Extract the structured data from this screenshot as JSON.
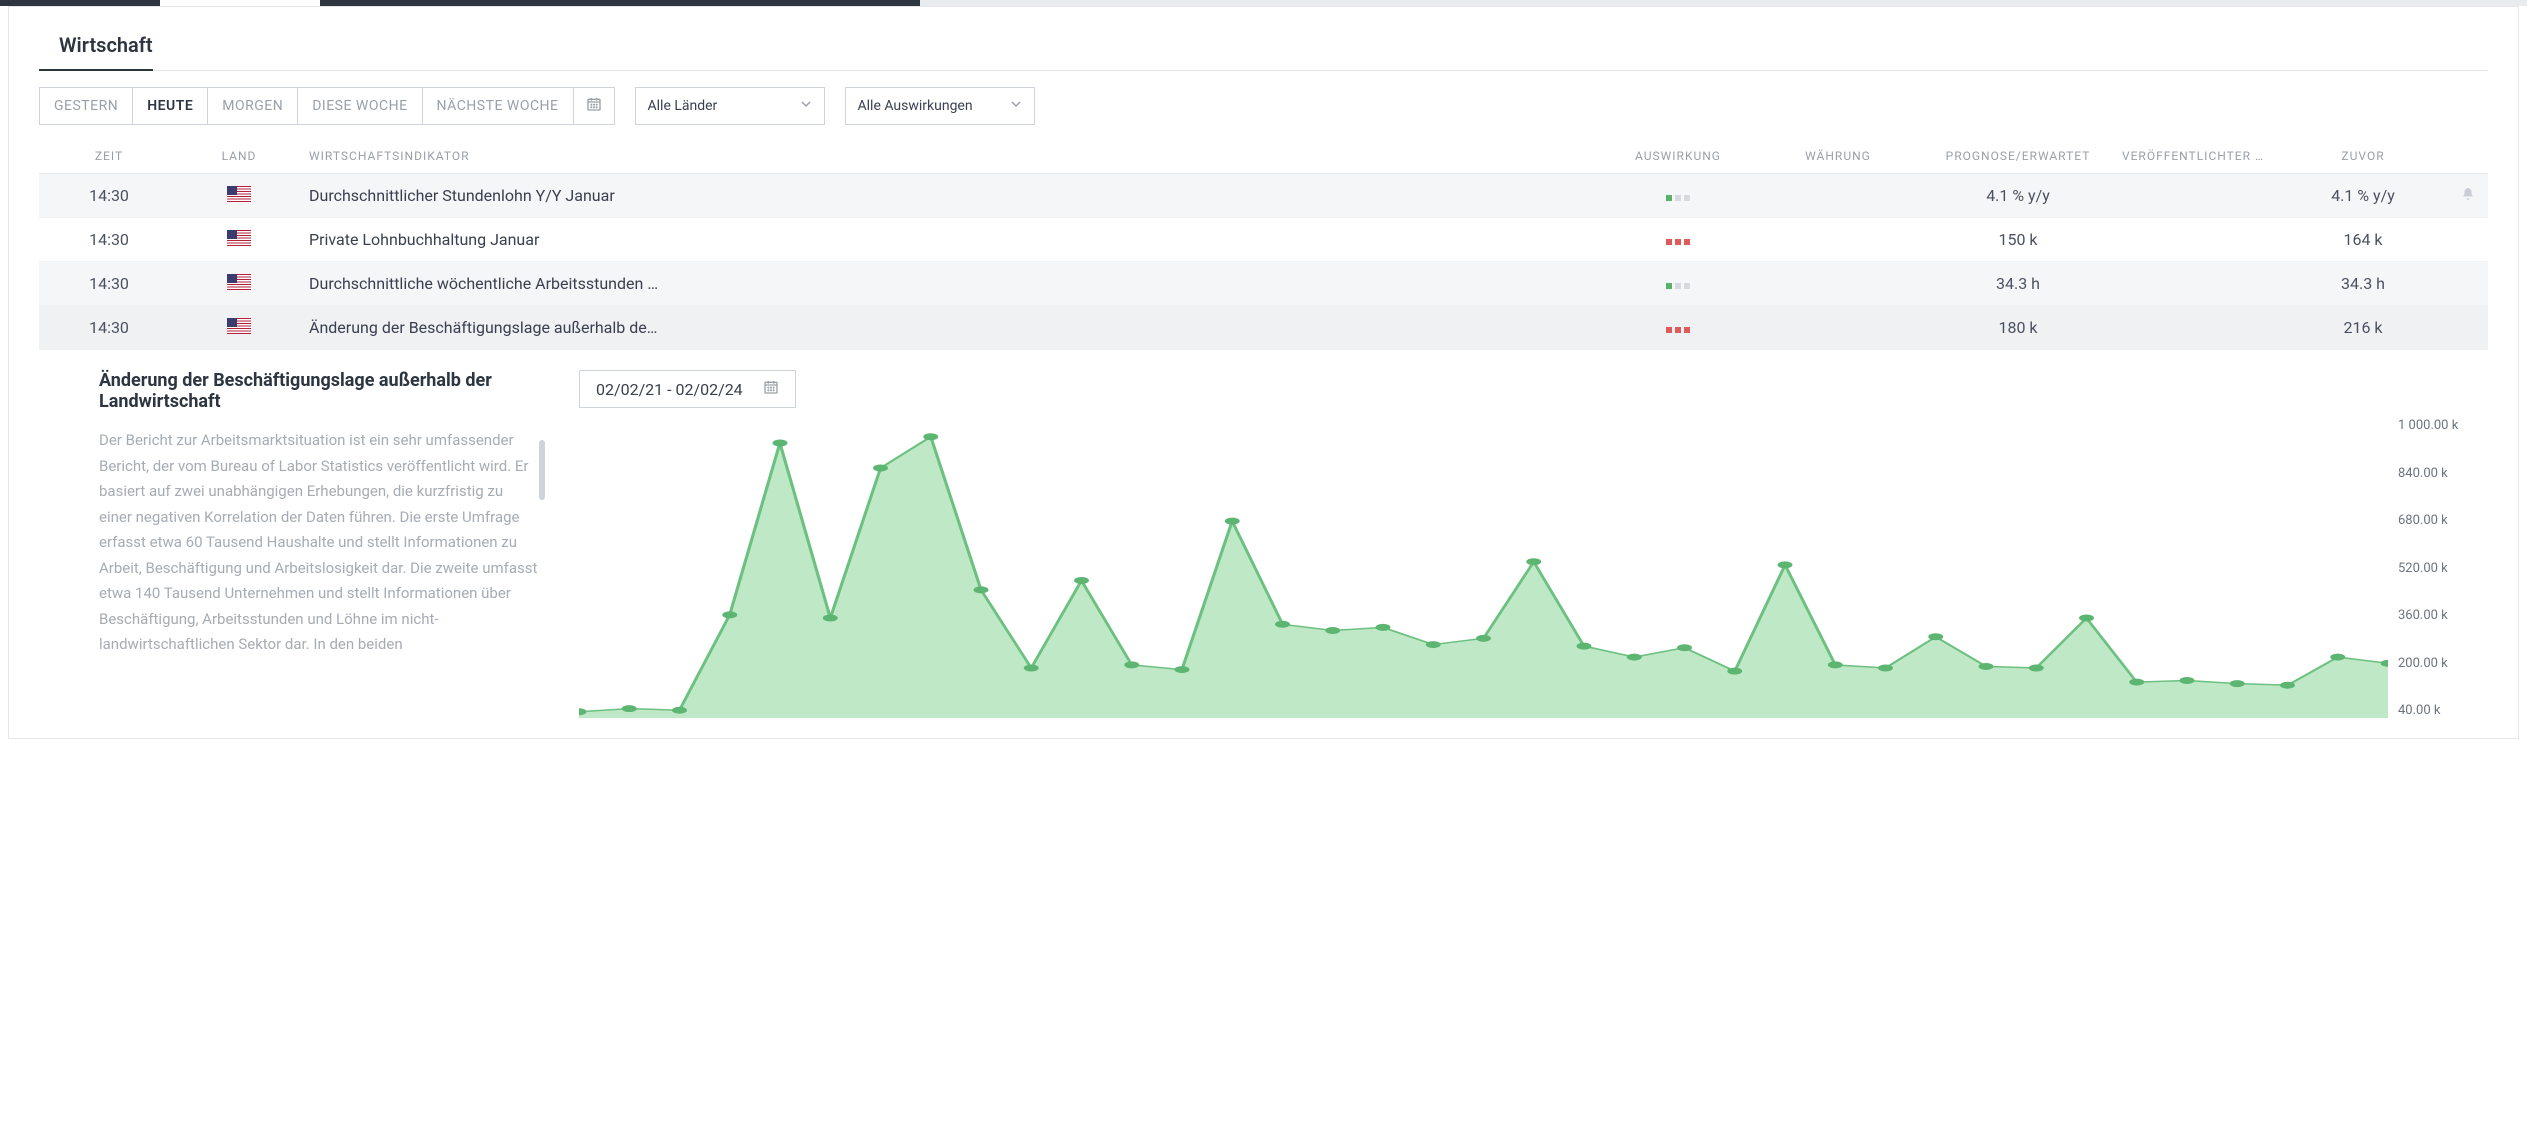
{
  "section_title": "Wirtschaft",
  "tabs": {
    "gestern": "GESTERN",
    "heute": "HEUTE",
    "morgen": "MORGEN",
    "diese_woche": "DIESE WOCHE",
    "naechste_woche": "NÄCHSTE WOCHE"
  },
  "active_tab": "heute",
  "dropdowns": {
    "countries": "Alle Länder",
    "impacts": "Alle Auswirkungen"
  },
  "columns": {
    "time": "ZEIT",
    "land": "LAND",
    "indicator": "WIRTSCHAFTSINDIKATOR",
    "impact": "AUSWIRKUNG",
    "currency": "WÄHRUNG",
    "forecast": "PROGNOSE/ERWARTET",
    "published": "VERÖFFENTLICHTER …",
    "previous": "ZUVOR"
  },
  "rows": [
    {
      "time": "14:30",
      "flag": "us",
      "indicator": "Durchschnittlicher Stundenlohn Y/Y Januar",
      "impact": "low",
      "forecast": "4.1 % y/y",
      "previous": "4.1 % y/y",
      "alt": true,
      "bell": true
    },
    {
      "time": "14:30",
      "flag": "us",
      "indicator": "Private Lohnbuchhaltung Januar",
      "impact": "high",
      "forecast": "150 k",
      "previous": "164 k",
      "alt": false
    },
    {
      "time": "14:30",
      "flag": "us",
      "indicator": "Durchschnittliche wöchentliche Arbeitsstunden …",
      "impact": "low",
      "forecast": "34.3 h",
      "previous": "34.3 h",
      "alt": true
    },
    {
      "time": "14:30",
      "flag": "us",
      "indicator": "Änderung der Beschäftigungslage außerhalb de…",
      "impact": "high",
      "forecast": "180 k",
      "previous": "216 k",
      "alt": false,
      "selected": true
    }
  ],
  "detail": {
    "title": "Änderung der Beschäftigungslage außerhalb der Landwirtschaft",
    "description": "Der Bericht zur Arbeitsmarktsituation ist ein sehr umfassender Bericht, der vom Bureau of Labor Statistics veröffentlicht wird. Er basiert auf zwei unabhängigen Erhebungen, die kurzfristig zu einer negativen Korrelation der Daten führen. Die erste Umfrage erfasst etwa 60 Tausend Haushalte und stellt Informationen zu Arbeit, Beschäftigung und Arbeitslosigkeit dar. Die zweite umfasst etwa 140 Tausend Unternehmen und stellt Informationen über Beschäftigung, Arbeitsstunden und Löhne im nicht-landwirtschaftlichen Sektor dar. In den beiden",
    "date_range": "02/02/21 - 02/02/24"
  },
  "chart": {
    "type": "area",
    "ylim": [
      40,
      1000
    ],
    "y_ticks": [
      "1 000.00 k",
      "840.00 k",
      "680.00 k",
      "520.00 k",
      "360.00 k",
      "200.00 k",
      "40.00 k"
    ],
    "fill_color": "#b8e6c1",
    "line_color": "#6cc080",
    "point_color": "#5db572",
    "background": "#ffffff",
    "points": [
      60,
      70,
      65,
      370,
      920,
      360,
      840,
      940,
      450,
      200,
      480,
      210,
      195,
      670,
      340,
      320,
      330,
      275,
      295,
      540,
      270,
      235,
      265,
      190,
      530,
      210,
      200,
      300,
      205,
      200,
      360,
      155,
      160,
      150,
      145,
      235,
      215
    ]
  },
  "colors": {
    "text": "#3a4050",
    "muted": "#9aa0a8",
    "border": "#cfd4da",
    "row_alt": "#f5f6f8",
    "impact_low": "#58b368",
    "impact_high": "#e05a5a"
  }
}
